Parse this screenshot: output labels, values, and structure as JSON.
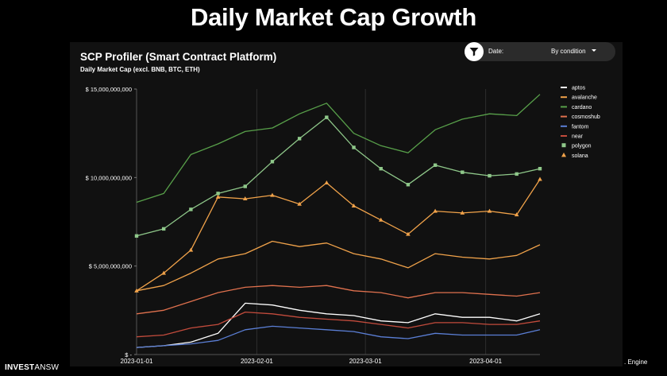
{
  "slide": {
    "title": "Daily Market Cap Growth",
    "logo_bold": "INVEST",
    "logo_rest": "ANSW",
    "footer_right": ". Engine"
  },
  "filter": {
    "label": "Date:",
    "value": "By condition",
    "icon": "funnel-icon"
  },
  "chart_data": {
    "type": "line",
    "title": "SCP Profiler (Smart Contract Platform)",
    "subtitle": "Daily Market Cap (excl. BNB, BTC, ETH)",
    "xlabel": "",
    "ylabel": "",
    "x_range": [
      "2023-01-01",
      "2023-04-15"
    ],
    "x_ticks": [
      "2023-01-01",
      "2023-02-01",
      "2023-03-01",
      "2023-04-01"
    ],
    "ylim": [
      0,
      15000000000
    ],
    "y_ticks": [
      0,
      5000000000,
      10000000000,
      15000000000
    ],
    "y_tick_labels": [
      "$ -",
      "$ 5,000,000,000",
      "$ 10,000,000,000",
      "$ 15,000,000,000"
    ],
    "grid": "vertical",
    "legend_position": "right",
    "sample_dates": [
      "2023-01-01",
      "2023-01-08",
      "2023-01-15",
      "2023-01-22",
      "2023-01-29",
      "2023-02-05",
      "2023-02-12",
      "2023-02-19",
      "2023-02-26",
      "2023-03-05",
      "2023-03-12",
      "2023-03-19",
      "2023-03-26",
      "2023-04-02",
      "2023-04-09",
      "2023-04-15"
    ],
    "series": [
      {
        "name": "aptos",
        "color": "#ffffff",
        "marker": "none",
        "values": [
          400000000,
          500000000,
          700000000,
          1200000000,
          2900000000,
          2800000000,
          2500000000,
          2300000000,
          2200000000,
          1900000000,
          1800000000,
          2300000000,
          2100000000,
          2100000000,
          1900000000,
          2300000000
        ]
      },
      {
        "name": "avalanche",
        "color": "#f0a24a",
        "marker": "none",
        "values": [
          3600000000,
          3900000000,
          4600000000,
          5400000000,
          5700000000,
          6400000000,
          6100000000,
          6300000000,
          5700000000,
          5400000000,
          4900000000,
          5700000000,
          5500000000,
          5400000000,
          5600000000,
          6200000000
        ]
      },
      {
        "name": "cardano",
        "color": "#58a04a",
        "marker": "none",
        "values": [
          8600000000,
          9100000000,
          11300000000,
          11900000000,
          12600000000,
          12800000000,
          13600000000,
          14200000000,
          12500000000,
          11800000000,
          11400000000,
          12700000000,
          13300000000,
          13600000000,
          13500000000,
          14700000000
        ]
      },
      {
        "name": "cosmoshub",
        "color": "#e0714e",
        "marker": "none",
        "values": [
          2300000000,
          2500000000,
          3000000000,
          3500000000,
          3800000000,
          3900000000,
          3800000000,
          3900000000,
          3600000000,
          3500000000,
          3200000000,
          3500000000,
          3500000000,
          3400000000,
          3300000000,
          3500000000
        ]
      },
      {
        "name": "fantom",
        "color": "#5b7fd6",
        "marker": "none",
        "values": [
          400000000,
          500000000,
          600000000,
          800000000,
          1400000000,
          1600000000,
          1500000000,
          1400000000,
          1300000000,
          1000000000,
          900000000,
          1200000000,
          1100000000,
          1100000000,
          1100000000,
          1400000000
        ]
      },
      {
        "name": "near",
        "color": "#c24b3c",
        "marker": "none",
        "values": [
          1000000000,
          1100000000,
          1500000000,
          1700000000,
          2400000000,
          2300000000,
          2100000000,
          2000000000,
          1900000000,
          1700000000,
          1500000000,
          1800000000,
          1800000000,
          1700000000,
          1700000000,
          1900000000
        ]
      },
      {
        "name": "polygon",
        "color": "#8fc88a",
        "marker": "square",
        "values": [
          6700000000,
          7100000000,
          8200000000,
          9100000000,
          9500000000,
          10900000000,
          12200000000,
          13400000000,
          11700000000,
          10500000000,
          9600000000,
          10700000000,
          10300000000,
          10100000000,
          10200000000,
          10500000000
        ]
      },
      {
        "name": "solana",
        "color": "#f0a24a",
        "marker": "triangle",
        "values": [
          3600000000,
          4600000000,
          5900000000,
          8900000000,
          8800000000,
          9000000000,
          8500000000,
          9700000000,
          8400000000,
          7600000000,
          6800000000,
          8100000000,
          8000000000,
          8100000000,
          7900000000,
          9900000000
        ]
      }
    ]
  }
}
